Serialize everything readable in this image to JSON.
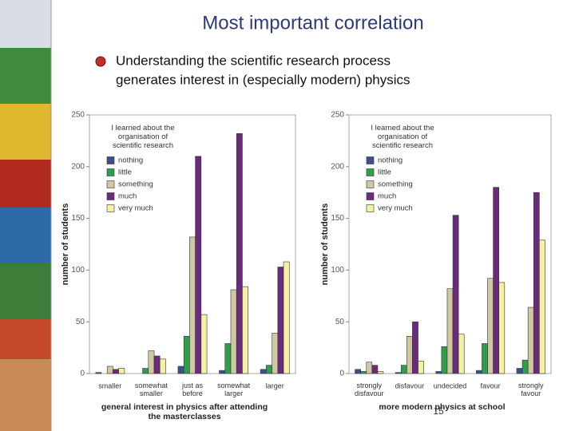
{
  "title": "Most important correlation",
  "bullet": [
    "Understanding  the scientific research process",
    "generates interest in (especially modern) physics"
  ],
  "page_number": "15",
  "chart_data": [
    {
      "type": "bar",
      "ylabel": "number of students",
      "xlabel": "general interest in physics after attending\nthe masterclasses",
      "legend_title": "I learned about the\norganisation of\nscientific research",
      "legend": "upper left",
      "categories": [
        "smaller",
        "somewhat\nsmaller",
        "just as\nbefore",
        "somewhat\nlarger",
        "larger"
      ],
      "series": [
        {
          "name": "nothing",
          "color": "#3d4f8f",
          "values": [
            1,
            0,
            7,
            3,
            4
          ]
        },
        {
          "name": "little",
          "color": "#2f9e4a",
          "values": [
            0,
            5,
            36,
            29,
            8
          ]
        },
        {
          "name": "something",
          "color": "#cfc8a2",
          "values": [
            7,
            22,
            132,
            81,
            39
          ]
        },
        {
          "name": "much",
          "color": "#6a2b7c",
          "values": [
            4,
            17,
            210,
            232,
            103
          ]
        },
        {
          "name": "very much",
          "color": "#f4f1a2",
          "values": [
            5,
            14,
            57,
            84,
            108
          ]
        }
      ],
      "ylim": [
        0,
        250
      ],
      "yticks": [
        0,
        50,
        100,
        150,
        200,
        250
      ]
    },
    {
      "type": "bar",
      "ylabel": "number of students",
      "xlabel": "more modern physics at school",
      "legend_title": "I learned about the\norganisation of\nscientific research",
      "legend": "upper left",
      "categories": [
        "strongly\ndisfavour",
        "disfavour",
        "undecided",
        "favour",
        "strongly\nfavour"
      ],
      "series": [
        {
          "name": "nothing",
          "color": "#3d4f8f",
          "values": [
            4,
            1,
            2,
            3,
            5
          ]
        },
        {
          "name": "little",
          "color": "#2f9e4a",
          "values": [
            2,
            8,
            26,
            29,
            13
          ]
        },
        {
          "name": "something",
          "color": "#cfc8a2",
          "values": [
            11,
            36,
            82,
            92,
            64
          ]
        },
        {
          "name": "much",
          "color": "#6a2b7c",
          "values": [
            8,
            50,
            153,
            180,
            175
          ]
        },
        {
          "name": "very much",
          "color": "#f4f1a2",
          "values": [
            2,
            12,
            38,
            88,
            129
          ]
        }
      ],
      "ylim": [
        0,
        250
      ],
      "yticks": [
        0,
        50,
        100,
        150,
        200,
        250
      ]
    }
  ]
}
